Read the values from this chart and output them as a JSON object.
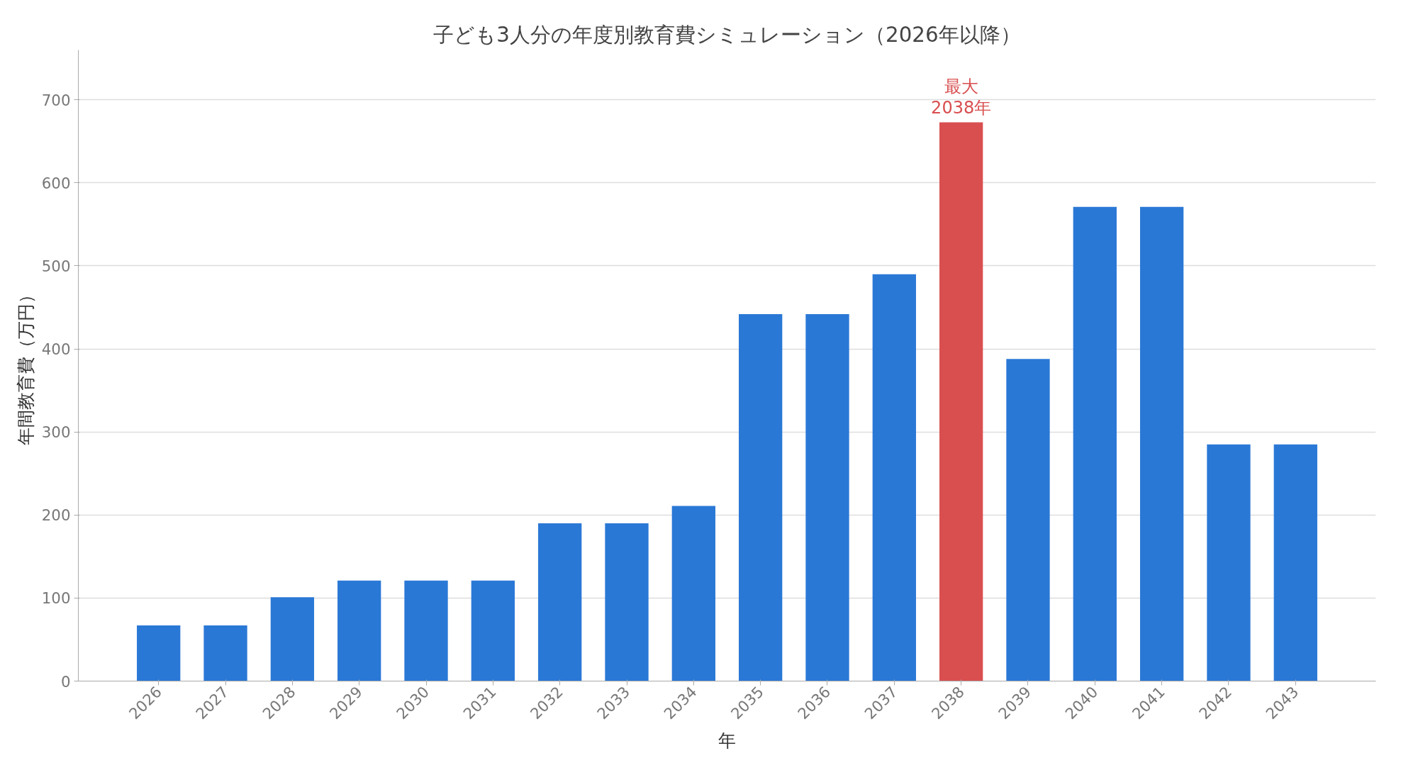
{
  "chart_data": {
    "type": "bar",
    "title": "子ども3人分の年度別教育費シミュレーション（2026年以降）",
    "xlabel": "年",
    "ylabel": "年間教育費（万円）",
    "categories": [
      "2026",
      "2027",
      "2028",
      "2029",
      "2030",
      "2031",
      "2032",
      "2033",
      "2034",
      "2035",
      "2036",
      "2037",
      "2038",
      "2039",
      "2040",
      "2041",
      "2042",
      "2043"
    ],
    "values": [
      67,
      67,
      101,
      121,
      121,
      121,
      190,
      190,
      211,
      442,
      442,
      490,
      673,
      388,
      571,
      571,
      285,
      285
    ],
    "colors": [
      "#2a78d6",
      "#2a78d6",
      "#2a78d6",
      "#2a78d6",
      "#2a78d6",
      "#2a78d6",
      "#2a78d6",
      "#2a78d6",
      "#2a78d6",
      "#2a78d6",
      "#2a78d6",
      "#2a78d6",
      "#d94f50",
      "#2a78d6",
      "#2a78d6",
      "#2a78d6",
      "#2a78d6",
      "#2a78d6"
    ],
    "ylim": [
      0,
      760
    ],
    "yticks": [
      0,
      100,
      200,
      300,
      400,
      500,
      600,
      700
    ],
    "grid": "y",
    "annotations": [
      {
        "text": "最大\n2038年",
        "x": "2038",
        "y": 673
      }
    ]
  }
}
